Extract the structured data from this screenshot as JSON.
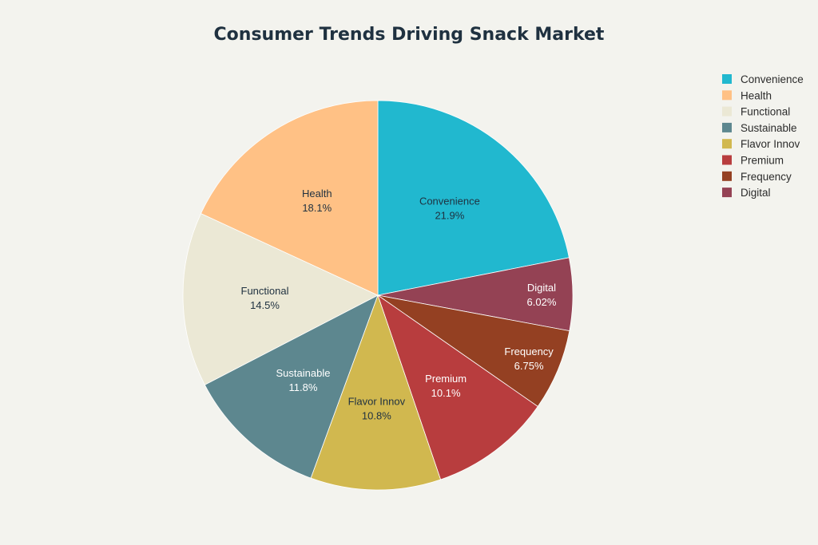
{
  "chart_data": {
    "type": "pie",
    "title": "Consumer Trends Driving Snack Market",
    "legend_position": "top-right",
    "slices": [
      {
        "label": "Convenience",
        "value": 21.9,
        "display": "21.9%",
        "color": "#21b8cf",
        "text_color": "#1f3140"
      },
      {
        "label": "Digital",
        "value": 6.02,
        "display": "6.02%",
        "color": "#944254",
        "text_color": "#ffffff"
      },
      {
        "label": "Frequency",
        "value": 6.75,
        "display": "6.75%",
        "color": "#944022",
        "text_color": "#ffffff"
      },
      {
        "label": "Premium",
        "value": 10.1,
        "display": "10.1%",
        "color": "#b83d3e",
        "text_color": "#ffffff"
      },
      {
        "label": "Flavor Innov",
        "value": 10.8,
        "display": "10.8%",
        "color": "#d1b84f",
        "text_color": "#1f3140"
      },
      {
        "label": "Sustainable",
        "value": 11.8,
        "display": "11.8%",
        "color": "#5d878f",
        "text_color": "#ffffff"
      },
      {
        "label": "Functional",
        "value": 14.5,
        "display": "14.5%",
        "color": "#ebe8d5",
        "text_color": "#1f3140"
      },
      {
        "label": "Health",
        "value": 18.1,
        "display": "18.1%",
        "color": "#ffc185",
        "text_color": "#1f3140"
      }
    ],
    "legend": [
      "Convenience",
      "Health",
      "Functional",
      "Sustainable",
      "Flavor Innov",
      "Premium",
      "Frequency",
      "Digital"
    ]
  }
}
